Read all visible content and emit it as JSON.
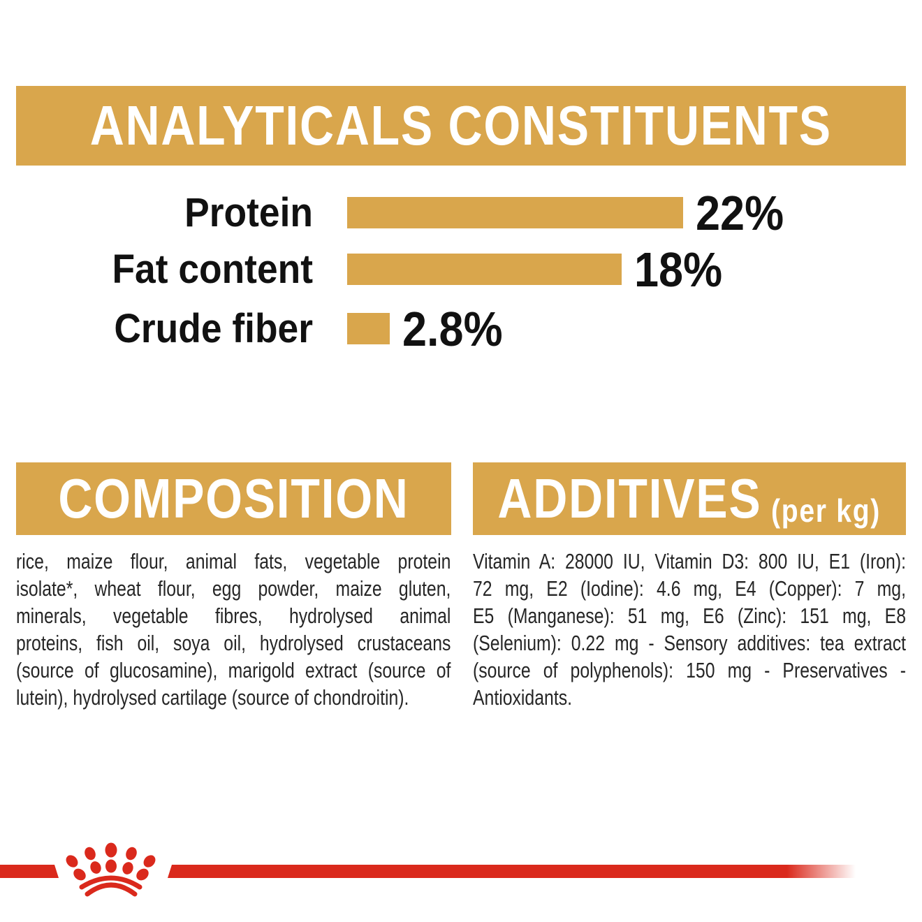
{
  "colors": {
    "gold": "#D9A64C",
    "red": "#DA291C",
    "heading_text": "#FFFFFF",
    "chart_text": "#111111",
    "body_text": "#262626",
    "background": "#FFFFFF"
  },
  "analyticals": {
    "title": "ANALYTICALS CONSTITUENTS"
  },
  "chart_data": {
    "type": "bar",
    "orientation": "horizontal",
    "title": "ANALYTICALS CONSTITUENTS",
    "categories": [
      "Protein",
      "Fat content",
      "Crude fiber"
    ],
    "values": [
      22,
      18,
      2.8
    ],
    "value_labels": [
      "22%",
      "18%",
      "2.8%"
    ],
    "unit": "%",
    "bar_color": "#D9A64C",
    "xlim": [
      0,
      24
    ],
    "grid": false,
    "legend": false
  },
  "composition": {
    "title": "COMPOSITION",
    "lines": [
      "rice, maize flour, animal fats, vegetable protein",
      "isolate*, wheat flour, egg powder, maize gluten,",
      "minerals, vegetable fibres, hydrolysed animal",
      "proteins, fish oil, soya oil, hydrolysed crustaceans",
      "(source of glucosamine), marigold extract (source of",
      "lutein), hydrolysed cartilage (source of chondroitin)."
    ]
  },
  "additives": {
    "title": "ADDITIVES",
    "title_suffix": "(per kg)",
    "lines": [
      "Vitamin A: 28000 IU, Vitamin D3: 800 IU, E1 (Iron):",
      "72 mg, E2 (Iodine): 4.6 mg, E4 (Copper): 7 mg,",
      "E5 (Manganese): 51 mg, E6 (Zinc): 151 mg, E8",
      "(Selenium): 0.22 mg - Sensory additives: tea extract",
      "(source of polyphenols): 150 mg - Preservatives -",
      "Antioxidants."
    ]
  },
  "footer": {
    "logo": "royal-canin-crown"
  }
}
